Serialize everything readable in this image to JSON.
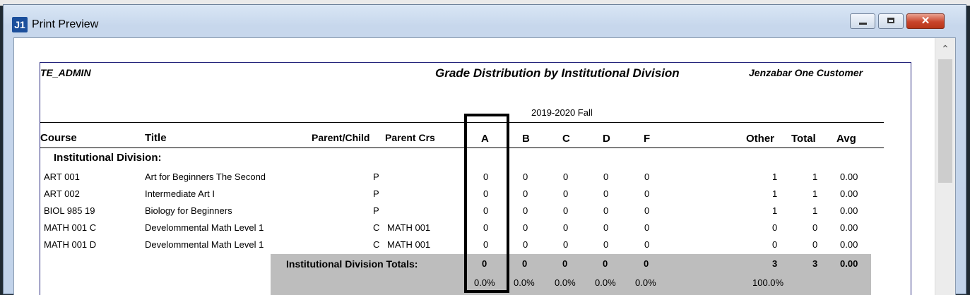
{
  "window": {
    "title": "Print Preview",
    "app_icon": "J1",
    "buttons": {
      "minimize": "minimize-icon",
      "maximize": "maximize-icon",
      "close": "close-icon"
    }
  },
  "report": {
    "user": "TE_ADMIN",
    "title": "Grade Distribution by Institutional Division",
    "customer": "Jenzabar One Customer",
    "term": "2019-2020 Fall",
    "columns": {
      "course": "Course",
      "title": "Title",
      "parent_child": "Parent/Child",
      "parent_crs": "Parent Crs",
      "a": "A",
      "b": "B",
      "c": "C",
      "d": "D",
      "f": "F",
      "other": "Other",
      "total": "Total",
      "avg": "Avg"
    },
    "group_label": "Institutional Division:",
    "rows": [
      {
        "course": "ART  001",
        "title": "Art for Beginners The Second",
        "pc": "P",
        "parent_crs": "",
        "a": "0",
        "b": "0",
        "c": "0",
        "d": "0",
        "f": "0",
        "other": "1",
        "total": "1",
        "avg": "0.00"
      },
      {
        "course": "ART  002",
        "title": "Intermediate Art I",
        "pc": "P",
        "parent_crs": "",
        "a": "0",
        "b": "0",
        "c": "0",
        "d": "0",
        "f": "0",
        "other": "1",
        "total": "1",
        "avg": "0.00"
      },
      {
        "course": "BIOL 985  19",
        "title": "Biology for Beginners",
        "pc": "P",
        "parent_crs": "",
        "a": "0",
        "b": "0",
        "c": "0",
        "d": "0",
        "f": "0",
        "other": "1",
        "total": "1",
        "avg": "0.00"
      },
      {
        "course": "MATH 001  C",
        "title": "Develommental Math Level 1",
        "pc": "C",
        "parent_crs": "MATH 001",
        "a": "0",
        "b": "0",
        "c": "0",
        "d": "0",
        "f": "0",
        "other": "0",
        "total": "0",
        "avg": "0.00"
      },
      {
        "course": "MATH 001  D",
        "title": "Develommental Math Level 1",
        "pc": "C",
        "parent_crs": "MATH 001",
        "a": "0",
        "b": "0",
        "c": "0",
        "d": "0",
        "f": "0",
        "other": "0",
        "total": "0",
        "avg": "0.00"
      }
    ],
    "totals": {
      "label": "Institutional Division Totals:",
      "a": "0",
      "b": "0",
      "c": "0",
      "d": "0",
      "f": "0",
      "other": "3",
      "total": "3",
      "avg": "0.00"
    },
    "percents": {
      "a": "0.0%",
      "b": "0.0%",
      "c": "0.0%",
      "d": "0.0%",
      "f": "0.0%",
      "other": "100.0%"
    }
  }
}
